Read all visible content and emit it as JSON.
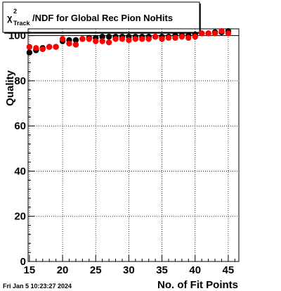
{
  "title": {
    "symbol": "χ",
    "superscript": "2",
    "subscript": "Track",
    "rest": "/NDF for Global Rec Pion NoHits"
  },
  "datestamp": "Fri Jan  5 10:23:27 2024",
  "colors": {
    "series_black": "#000000",
    "series_red": "#ff0000",
    "background": "#ffffff"
  },
  "chart_data": {
    "type": "scatter",
    "xlabel": "No. of Fit Points",
    "ylabel": "Quality",
    "xlim": [
      14.8,
      46.6
    ],
    "ylim": [
      0,
      103
    ],
    "grid": true,
    "x_ticks": [
      15,
      20,
      25,
      30,
      35,
      40,
      45
    ],
    "y_ticks": [
      0,
      20,
      40,
      60,
      80,
      100
    ],
    "reference_line_y": 100,
    "series": [
      {
        "color": "#000000",
        "x": [
          15,
          16,
          17,
          18,
          19,
          20,
          21,
          22,
          23,
          24,
          25,
          26,
          27,
          28,
          29,
          30,
          31,
          32,
          33,
          34,
          35,
          36,
          37,
          38,
          39,
          40,
          41,
          42,
          43,
          44,
          45
        ],
        "y": [
          92.5,
          93.5,
          94.5,
          95,
          95,
          97.5,
          98,
          98,
          98.5,
          99,
          99,
          99.5,
          99.5,
          99.5,
          99.5,
          99.5,
          99.5,
          99.5,
          99.5,
          99.5,
          99.5,
          99.5,
          100,
          100,
          100,
          100.5,
          101,
          101,
          101.5,
          101.5,
          102
        ]
      },
      {
        "color": "#ff0000",
        "x": [
          15,
          16,
          17,
          18,
          19,
          20,
          21,
          22,
          23,
          24,
          25,
          26,
          27,
          28,
          29,
          30,
          31,
          32,
          33,
          34,
          35,
          36,
          37,
          38,
          39,
          40,
          41,
          42,
          43,
          44,
          45
        ],
        "y": [
          95,
          94.5,
          94,
          95,
          95,
          98.5,
          96.5,
          96,
          98.5,
          98.5,
          97.5,
          97.5,
          97,
          98.5,
          98.5,
          98,
          98.5,
          98.5,
          98.5,
          99.5,
          98.5,
          99,
          99,
          99.5,
          99,
          99.5,
          101,
          101,
          101,
          102,
          101
        ]
      }
    ]
  }
}
